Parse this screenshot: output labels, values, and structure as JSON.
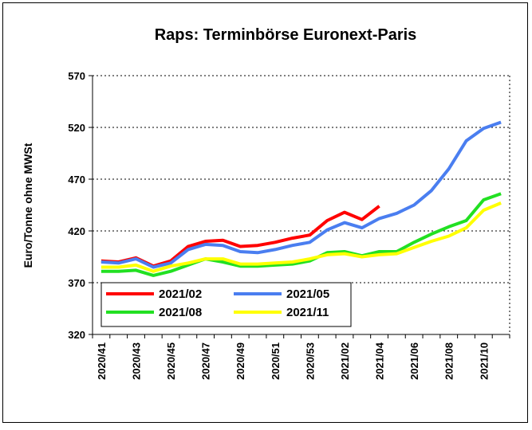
{
  "chart_data": {
    "type": "line",
    "title": "Raps: Terminbörse Euronext-Paris",
    "y_label": "Euro/Tonne ohne MWSt",
    "categories": [
      "2020/41",
      null,
      "2020/43",
      null,
      "2020/45",
      null,
      "2020/47",
      null,
      "2020/49",
      null,
      "2020/51",
      null,
      "2020/53",
      null,
      "2021/02",
      null,
      "2021/04",
      null,
      "2021/06",
      null,
      "2021/08",
      null,
      "2021/10",
      null
    ],
    "series": [
      {
        "name": "2021/02",
        "color": "#ff0000",
        "values": [
          391,
          390,
          394,
          386,
          391,
          405,
          410,
          411,
          405,
          406,
          409,
          413,
          416,
          430,
          438,
          431,
          444,
          null,
          null,
          null,
          null,
          null,
          null,
          null
        ]
      },
      {
        "name": "2021/05",
        "color": "#4a7ef0",
        "values": [
          390,
          389,
          393,
          385,
          389,
          402,
          407,
          406,
          400,
          399,
          402,
          406,
          409,
          421,
          428,
          423,
          432,
          437,
          445,
          459,
          480,
          507,
          519,
          525
        ]
      },
      {
        "name": "2021/08",
        "color": "#22e022",
        "values": [
          381,
          381,
          382,
          377,
          381,
          387,
          393,
          390,
          386,
          386,
          387,
          388,
          391,
          399,
          400,
          396,
          400,
          400,
          409,
          417,
          424,
          430,
          450,
          456
        ]
      },
      {
        "name": "2021/11",
        "color": "#ffff00",
        "values": [
          385,
          385,
          387,
          381,
          386,
          389,
          393,
          393,
          388,
          388,
          389,
          390,
          393,
          397,
          398,
          395,
          397,
          398,
          404,
          410,
          415,
          423,
          440,
          447
        ]
      }
    ],
    "ylim": [
      320,
      570
    ],
    "yticks": [
      320,
      370,
      420,
      470,
      520,
      570
    ],
    "grid": true
  }
}
